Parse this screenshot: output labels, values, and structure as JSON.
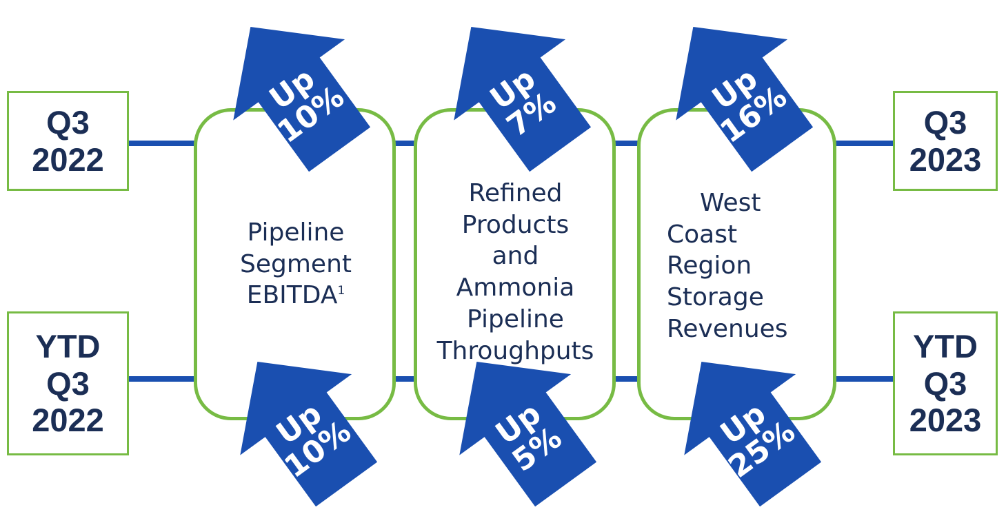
{
  "start": {
    "q3": [
      "Q3",
      "2022"
    ],
    "ytd": [
      "YTD",
      "Q3",
      "2022"
    ]
  },
  "end": {
    "q3": [
      "Q3",
      "2023"
    ],
    "ytd": [
      "YTD",
      "Q3",
      "2023"
    ]
  },
  "metrics": [
    {
      "label_lines": [
        "Pipeline",
        "Segment",
        "EBITDA"
      ],
      "footnote": "1",
      "q3": {
        "word": "Up",
        "value": "10%"
      },
      "ytd": {
        "word": "Up",
        "value": "10%"
      }
    },
    {
      "label_lines": [
        "Refined",
        "Products",
        "and",
        "Ammonia",
        "Pipeline",
        "Throughputs"
      ],
      "q3": {
        "word": "Up",
        "value": "7%"
      },
      "ytd": {
        "word": "Up",
        "value": "5%"
      }
    },
    {
      "label_lines": [
        "West",
        "Coast",
        "Region",
        "Storage",
        "Revenues"
      ],
      "q3": {
        "word": "Up",
        "value": "16%"
      },
      "ytd": {
        "word": "Up",
        "value": "25%"
      }
    }
  ],
  "colors": {
    "arrow": "#1a4fb0",
    "border": "#77bb44",
    "text": "#1b2e55",
    "line": "#1a4fb0"
  }
}
